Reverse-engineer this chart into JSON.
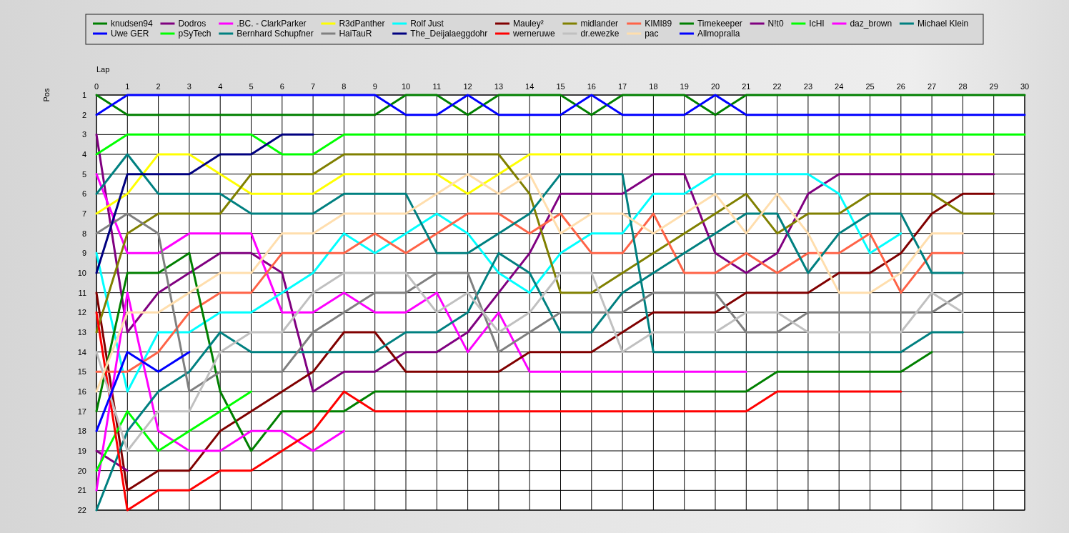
{
  "chart_data": {
    "type": "line",
    "xlabel": "Lap",
    "ylabel": "Pos",
    "x": [
      0,
      1,
      2,
      3,
      4,
      5,
      6,
      7,
      8,
      9,
      10,
      11,
      12,
      13,
      14,
      15,
      16,
      17,
      18,
      19,
      20,
      21,
      22,
      23,
      24,
      25,
      26,
      27,
      28,
      29,
      30
    ],
    "xlim": [
      0,
      30
    ],
    "xticks": [
      0,
      1,
      2,
      3,
      4,
      5,
      6,
      7,
      8,
      9,
      10,
      11,
      12,
      13,
      14,
      15,
      16,
      17,
      18,
      19,
      20,
      21,
      22,
      23,
      24,
      25,
      26,
      27,
      28,
      29,
      30
    ],
    "ylim": [
      22,
      1
    ],
    "yticks": [
      1,
      2,
      3,
      4,
      5,
      6,
      7,
      8,
      9,
      10,
      11,
      12,
      13,
      14,
      15,
      16,
      17,
      18,
      19,
      20,
      21,
      22
    ],
    "grid": true,
    "legend": "top",
    "line_style": "solid",
    "series": [
      {
        "name": "knudsen94",
        "color": "#008000",
        "values": [
          1,
          2,
          2,
          2,
          2,
          2,
          2,
          2,
          2,
          2,
          1,
          1,
          2,
          1,
          1,
          1,
          2,
          1,
          1,
          1,
          2,
          1,
          1,
          1,
          1,
          1,
          1,
          1,
          1,
          1,
          1
        ]
      },
      {
        "name": "Dodros",
        "color": "#800080",
        "values": [
          3,
          13,
          11,
          10,
          9,
          9,
          10,
          16,
          15,
          15,
          14,
          14,
          13,
          11,
          9,
          6,
          6,
          6,
          5,
          5,
          9,
          10,
          9,
          6,
          5,
          5,
          5,
          5,
          5,
          5,
          null
        ]
      },
      {
        "name": ".BC. - ClarkParker",
        "color": "#ff00ff",
        "values": [
          5,
          9,
          9,
          8,
          8,
          8,
          12,
          12,
          11,
          12,
          12,
          11,
          14,
          12,
          15,
          15,
          15,
          15,
          15,
          15,
          15,
          15,
          null,
          null,
          null,
          null,
          null,
          null,
          null,
          null,
          null
        ]
      },
      {
        "name": "R3dPanther",
        "color": "#ffff00",
        "values": [
          7,
          6,
          4,
          4,
          5,
          6,
          6,
          6,
          5,
          5,
          5,
          5,
          6,
          5,
          4,
          4,
          4,
          4,
          4,
          4,
          4,
          4,
          4,
          4,
          4,
          4,
          4,
          4,
          4,
          4,
          null
        ]
      },
      {
        "name": "Rolf Just",
        "color": "#00ffff",
        "values": [
          9,
          16,
          13,
          13,
          12,
          12,
          11,
          10,
          8,
          9,
          8,
          7,
          8,
          10,
          11,
          9,
          8,
          8,
          6,
          6,
          5,
          5,
          5,
          5,
          6,
          9,
          8,
          null,
          null,
          null,
          null
        ]
      },
      {
        "name": "Mauley²",
        "color": "#800000",
        "values": [
          11,
          21,
          20,
          20,
          18,
          17,
          16,
          15,
          13,
          13,
          15,
          15,
          15,
          15,
          14,
          14,
          14,
          13,
          12,
          12,
          12,
          11,
          11,
          11,
          10,
          10,
          9,
          7,
          6,
          6,
          null
        ]
      },
      {
        "name": "midlander",
        "color": "#808000",
        "values": [
          13,
          8,
          7,
          7,
          7,
          5,
          5,
          5,
          4,
          4,
          4,
          4,
          4,
          4,
          6,
          11,
          11,
          10,
          9,
          8,
          7,
          6,
          8,
          7,
          7,
          6,
          6,
          6,
          7,
          7,
          null
        ]
      },
      {
        "name": "KIMI89",
        "color": "#ff6347",
        "values": [
          15,
          15,
          14,
          12,
          11,
          11,
          9,
          9,
          9,
          8,
          9,
          8,
          7,
          7,
          8,
          7,
          9,
          9,
          7,
          10,
          10,
          9,
          10,
          9,
          9,
          8,
          11,
          9,
          9,
          null,
          null
        ]
      },
      {
        "name": "Timekeeper",
        "color": "#008000",
        "values": [
          17,
          10,
          10,
          9,
          16,
          19,
          17,
          17,
          17,
          16,
          16,
          16,
          16,
          16,
          16,
          16,
          16,
          16,
          16,
          16,
          16,
          16,
          15,
          15,
          15,
          15,
          15,
          14,
          null,
          null,
          null
        ]
      },
      {
        "name": "N!t0",
        "color": "#800080",
        "values": [
          19,
          20,
          null,
          null,
          null,
          null,
          null,
          null,
          null,
          null,
          null,
          null,
          null,
          null,
          null,
          null,
          null,
          null,
          null,
          null,
          null,
          null,
          null,
          null,
          null,
          null,
          null,
          null,
          null,
          null,
          null
        ]
      },
      {
        "name": "IcHI",
        "color": "#00ff00",
        "values": [
          4,
          3,
          3,
          3,
          3,
          3,
          4,
          4,
          3,
          3,
          3,
          3,
          3,
          3,
          3,
          3,
          3,
          3,
          3,
          3,
          3,
          3,
          3,
          3,
          3,
          3,
          3,
          3,
          3,
          3,
          3
        ]
      },
      {
        "name": "daz_brown",
        "color": "#ff00ff",
        "values": [
          21,
          11,
          18,
          19,
          19,
          18,
          18,
          19,
          18,
          null,
          null,
          null,
          null,
          null,
          null,
          null,
          null,
          null,
          null,
          null,
          null,
          null,
          null,
          null,
          null,
          null,
          null,
          null,
          null,
          null,
          null
        ]
      },
      {
        "name": "Michael Klein",
        "color": "#008080",
        "values": [
          6,
          4,
          6,
          6,
          6,
          7,
          7,
          7,
          6,
          6,
          6,
          9,
          9,
          8,
          7,
          5,
          5,
          5,
          14,
          14,
          14,
          14,
          14,
          14,
          14,
          14,
          14,
          13,
          13,
          null,
          null
        ]
      },
      {
        "name": "Uwe GER",
        "color": "#0000ff",
        "values": [
          2,
          1,
          1,
          1,
          1,
          1,
          1,
          1,
          1,
          1,
          2,
          2,
          1,
          2,
          2,
          2,
          1,
          2,
          2,
          2,
          1,
          2,
          2,
          2,
          2,
          2,
          2,
          2,
          2,
          2,
          2
        ]
      },
      {
        "name": "pSyTech",
        "color": "#00ff00",
        "values": [
          20,
          17,
          19,
          18,
          17,
          16,
          null,
          null,
          null,
          null,
          null,
          null,
          null,
          null,
          null,
          null,
          null,
          null,
          null,
          null,
          null,
          null,
          null,
          null,
          null,
          null,
          null,
          null,
          null,
          null,
          null
        ]
      },
      {
        "name": "Bernhard Schupfner",
        "color": "#008080",
        "values": [
          22,
          18,
          16,
          15,
          13,
          14,
          14,
          14,
          14,
          14,
          13,
          13,
          12,
          9,
          10,
          13,
          13,
          11,
          10,
          9,
          8,
          7,
          7,
          10,
          8,
          7,
          7,
          10,
          10,
          null,
          null
        ]
      },
      {
        "name": "HaiTauR",
        "color": "#808080",
        "values": [
          8,
          7,
          8,
          16,
          15,
          15,
          15,
          13,
          12,
          11,
          11,
          10,
          10,
          14,
          13,
          12,
          12,
          12,
          11,
          11,
          11,
          13,
          13,
          12,
          12,
          12,
          12,
          12,
          11,
          null,
          null
        ]
      },
      {
        "name": "The_Deijalaeggdohr",
        "color": "#000080",
        "values": [
          10,
          5,
          5,
          5,
          4,
          4,
          3,
          3,
          null,
          null,
          null,
          null,
          null,
          null,
          null,
          null,
          null,
          null,
          null,
          null,
          null,
          null,
          null,
          null,
          null,
          null,
          null,
          null,
          null,
          null,
          null
        ]
      },
      {
        "name": "werneruwe",
        "color": "#ff0000",
        "values": [
          12,
          22,
          21,
          21,
          20,
          20,
          19,
          18,
          16,
          17,
          17,
          17,
          17,
          17,
          17,
          17,
          17,
          17,
          17,
          17,
          17,
          17,
          16,
          16,
          16,
          16,
          16,
          null,
          null,
          null,
          null
        ]
      },
      {
        "name": "dr.ewezke",
        "color": "#c0c0c0",
        "values": [
          14,
          19,
          17,
          17,
          14,
          13,
          13,
          11,
          10,
          10,
          10,
          12,
          11,
          13,
          12,
          10,
          10,
          14,
          13,
          13,
          13,
          12,
          12,
          13,
          13,
          13,
          13,
          11,
          12,
          null,
          null
        ]
      },
      {
        "name": "pac",
        "color": "#ffdead",
        "values": [
          16,
          12,
          12,
          11,
          10,
          10,
          8,
          8,
          7,
          7,
          7,
          6,
          5,
          6,
          5,
          8,
          7,
          7,
          8,
          7,
          6,
          8,
          6,
          8,
          11,
          11,
          10,
          8,
          8,
          null,
          null
        ]
      },
      {
        "name": "Allmopralla",
        "color": "#0000ff",
        "values": [
          18,
          14,
          15,
          14,
          null,
          null,
          null,
          null,
          null,
          null,
          null,
          null,
          null,
          null,
          null,
          null,
          null,
          null,
          null,
          null,
          null,
          null,
          null,
          null,
          null,
          null,
          null,
          null,
          null,
          null,
          null
        ]
      }
    ]
  }
}
